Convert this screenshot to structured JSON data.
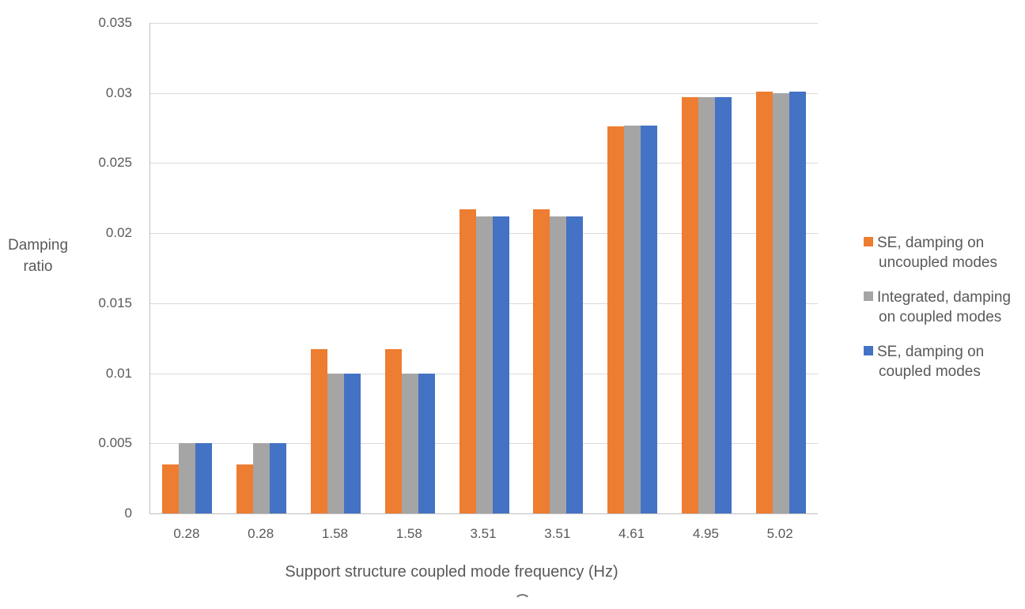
{
  "chart_data": {
    "type": "bar",
    "xlabel": "Support structure coupled mode frequency (Hz)",
    "ylabel": "Damping ratio",
    "ylabel_lines": [
      "Damping",
      "ratio"
    ],
    "categories": [
      "0.28",
      "0.28",
      "1.58",
      "1.58",
      "3.51",
      "3.51",
      "4.61",
      "4.95",
      "5.02"
    ],
    "series": [
      {
        "name": "SE, damping on uncoupled modes",
        "color": "#ED7D31",
        "values": [
          0.0035,
          0.0035,
          0.0117,
          0.0117,
          0.0217,
          0.0217,
          0.0276,
          0.0297,
          0.0301
        ]
      },
      {
        "name": "Integrated, damping on coupled modes",
        "color": "#A5A5A5",
        "values": [
          0.005,
          0.005,
          0.01,
          0.01,
          0.0212,
          0.0212,
          0.0277,
          0.0297,
          0.03
        ]
      },
      {
        "name": "SE, damping on coupled modes",
        "color": "#4472C4",
        "values": [
          0.005,
          0.005,
          0.01,
          0.01,
          0.0212,
          0.0212,
          0.0277,
          0.0297,
          0.0301
        ]
      }
    ],
    "legend": [
      {
        "label_lines": [
          "SE, damping on",
          "uncoupled modes"
        ],
        "color": "#ED7D31"
      },
      {
        "label_lines": [
          "Integrated, damping",
          "on coupled modes"
        ],
        "color": "#A5A5A5"
      },
      {
        "label_lines": [
          "SE, damping on",
          "coupled modes"
        ],
        "color": "#4472C4"
      }
    ],
    "legend_position": "right",
    "ylim": [
      0,
      0.035
    ],
    "ytick_step": 0.005,
    "yticks": [
      "0",
      "0.005",
      "0.01",
      "0.015",
      "0.02",
      "0.025",
      "0.03",
      "0.035"
    ],
    "grid": true,
    "colors": {
      "grid": "#D9D9D9",
      "axis": "#BFBFBF",
      "text": "#595959"
    }
  }
}
